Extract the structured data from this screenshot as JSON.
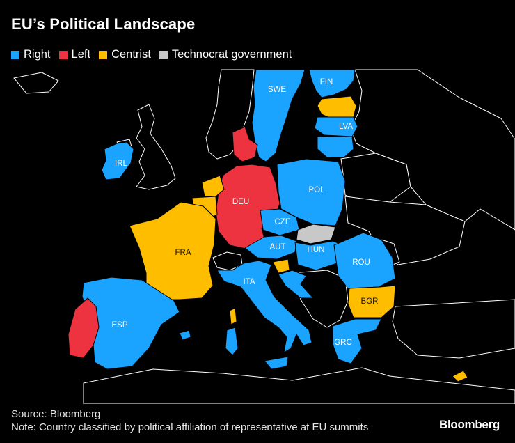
{
  "title": "EU’s Political Landscape",
  "legend": [
    {
      "label": "Right",
      "color": "#1aa3ff"
    },
    {
      "label": "Left",
      "color": "#ee3340"
    },
    {
      "label": "Centrist",
      "color": "#ffbd00"
    },
    {
      "label": "Technocrat government",
      "color": "#c8c8c8"
    }
  ],
  "countries": {
    "swe": "SWE",
    "fin": "FIN",
    "lva": "LVA",
    "irl": "IRL",
    "deu": "DEU",
    "pol": "POL",
    "cze": "CZE",
    "fra": "FRA",
    "aut": "AUT",
    "hun": "HUN",
    "rou": "ROU",
    "ita": "ITA",
    "bgr": "BGR",
    "esp": "ESP",
    "grc": "GRC"
  },
  "source": "Source: Bloomberg",
  "note": "Note: Country classified by political affiliation of representative at EU summits",
  "brand": "Bloomberg"
}
